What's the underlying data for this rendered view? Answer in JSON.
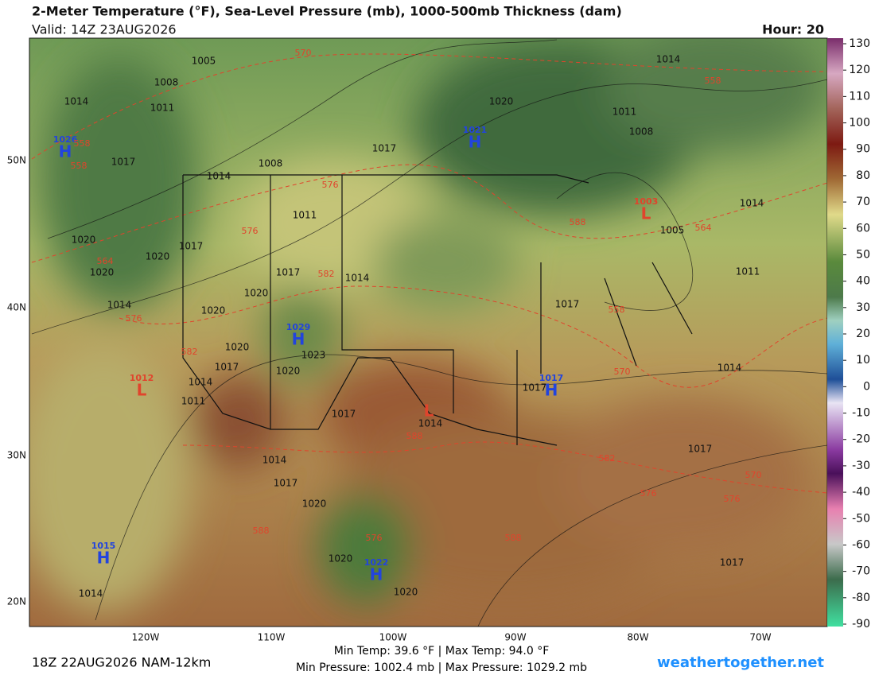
{
  "header": {
    "title": "2-Meter Temperature (°F), Sea-Level Pressure (mb), 1000-500mb Thickness (dam)",
    "valid": "Valid: 14Z 23AUG2026",
    "hour": "Hour: 20"
  },
  "colorbar": {
    "ticks": [
      130,
      120,
      110,
      100,
      90,
      80,
      70,
      60,
      50,
      40,
      30,
      20,
      10,
      0,
      -10,
      -20,
      -30,
      -40,
      -50,
      -60,
      -70,
      -80,
      -90
    ]
  },
  "axes": {
    "lon_labels": [
      "120W",
      "110W",
      "100W",
      "90W",
      "80W",
      "70W"
    ],
    "lat_labels": [
      "50N",
      "40N",
      "30N",
      "20N"
    ]
  },
  "pressure_centers": [
    {
      "letter": "H",
      "value": 1026
    },
    {
      "letter": "H",
      "value": 1021
    },
    {
      "letter": "H",
      "value": 1029
    },
    {
      "letter": "H",
      "value": 1017
    },
    {
      "letter": "H",
      "value": 1015
    },
    {
      "letter": "H",
      "value": 1022
    },
    {
      "letter": "L",
      "value": 1003
    },
    {
      "letter": "L",
      "value": 1012
    },
    {
      "letter": "L"
    }
  ],
  "isobar_labels": [
    1005,
    1008,
    1014,
    1011,
    1017,
    1014,
    1008,
    1011,
    1017,
    1020,
    1014,
    1011,
    1008,
    1005,
    1014,
    1011,
    1017,
    1014,
    1017,
    1017,
    1014,
    1017,
    1020,
    1023,
    1020,
    1017,
    1014,
    1011,
    1014,
    1017,
    1020,
    1020,
    1020,
    1014,
    1020,
    1020,
    1014,
    1017,
    1020,
    1017,
    1014,
    1020,
    1020,
    1017
  ],
  "thickness_labels": [
    570,
    558,
    558,
    558,
    576,
    576,
    564,
    582,
    576,
    582,
    570,
    588,
    588,
    576,
    576,
    582,
    576,
    570,
    588,
    588,
    564,
    558
  ],
  "footer": {
    "run": "18Z 22AUG2026 NAM-12km",
    "temp_range": "Min Temp:  39.6 °F | Max Temp:  94.0 °F",
    "pressure_range": "Min Pressure: 1002.4 mb | Max Pressure: 1029.2 mb",
    "site": "weathertogether.net"
  }
}
